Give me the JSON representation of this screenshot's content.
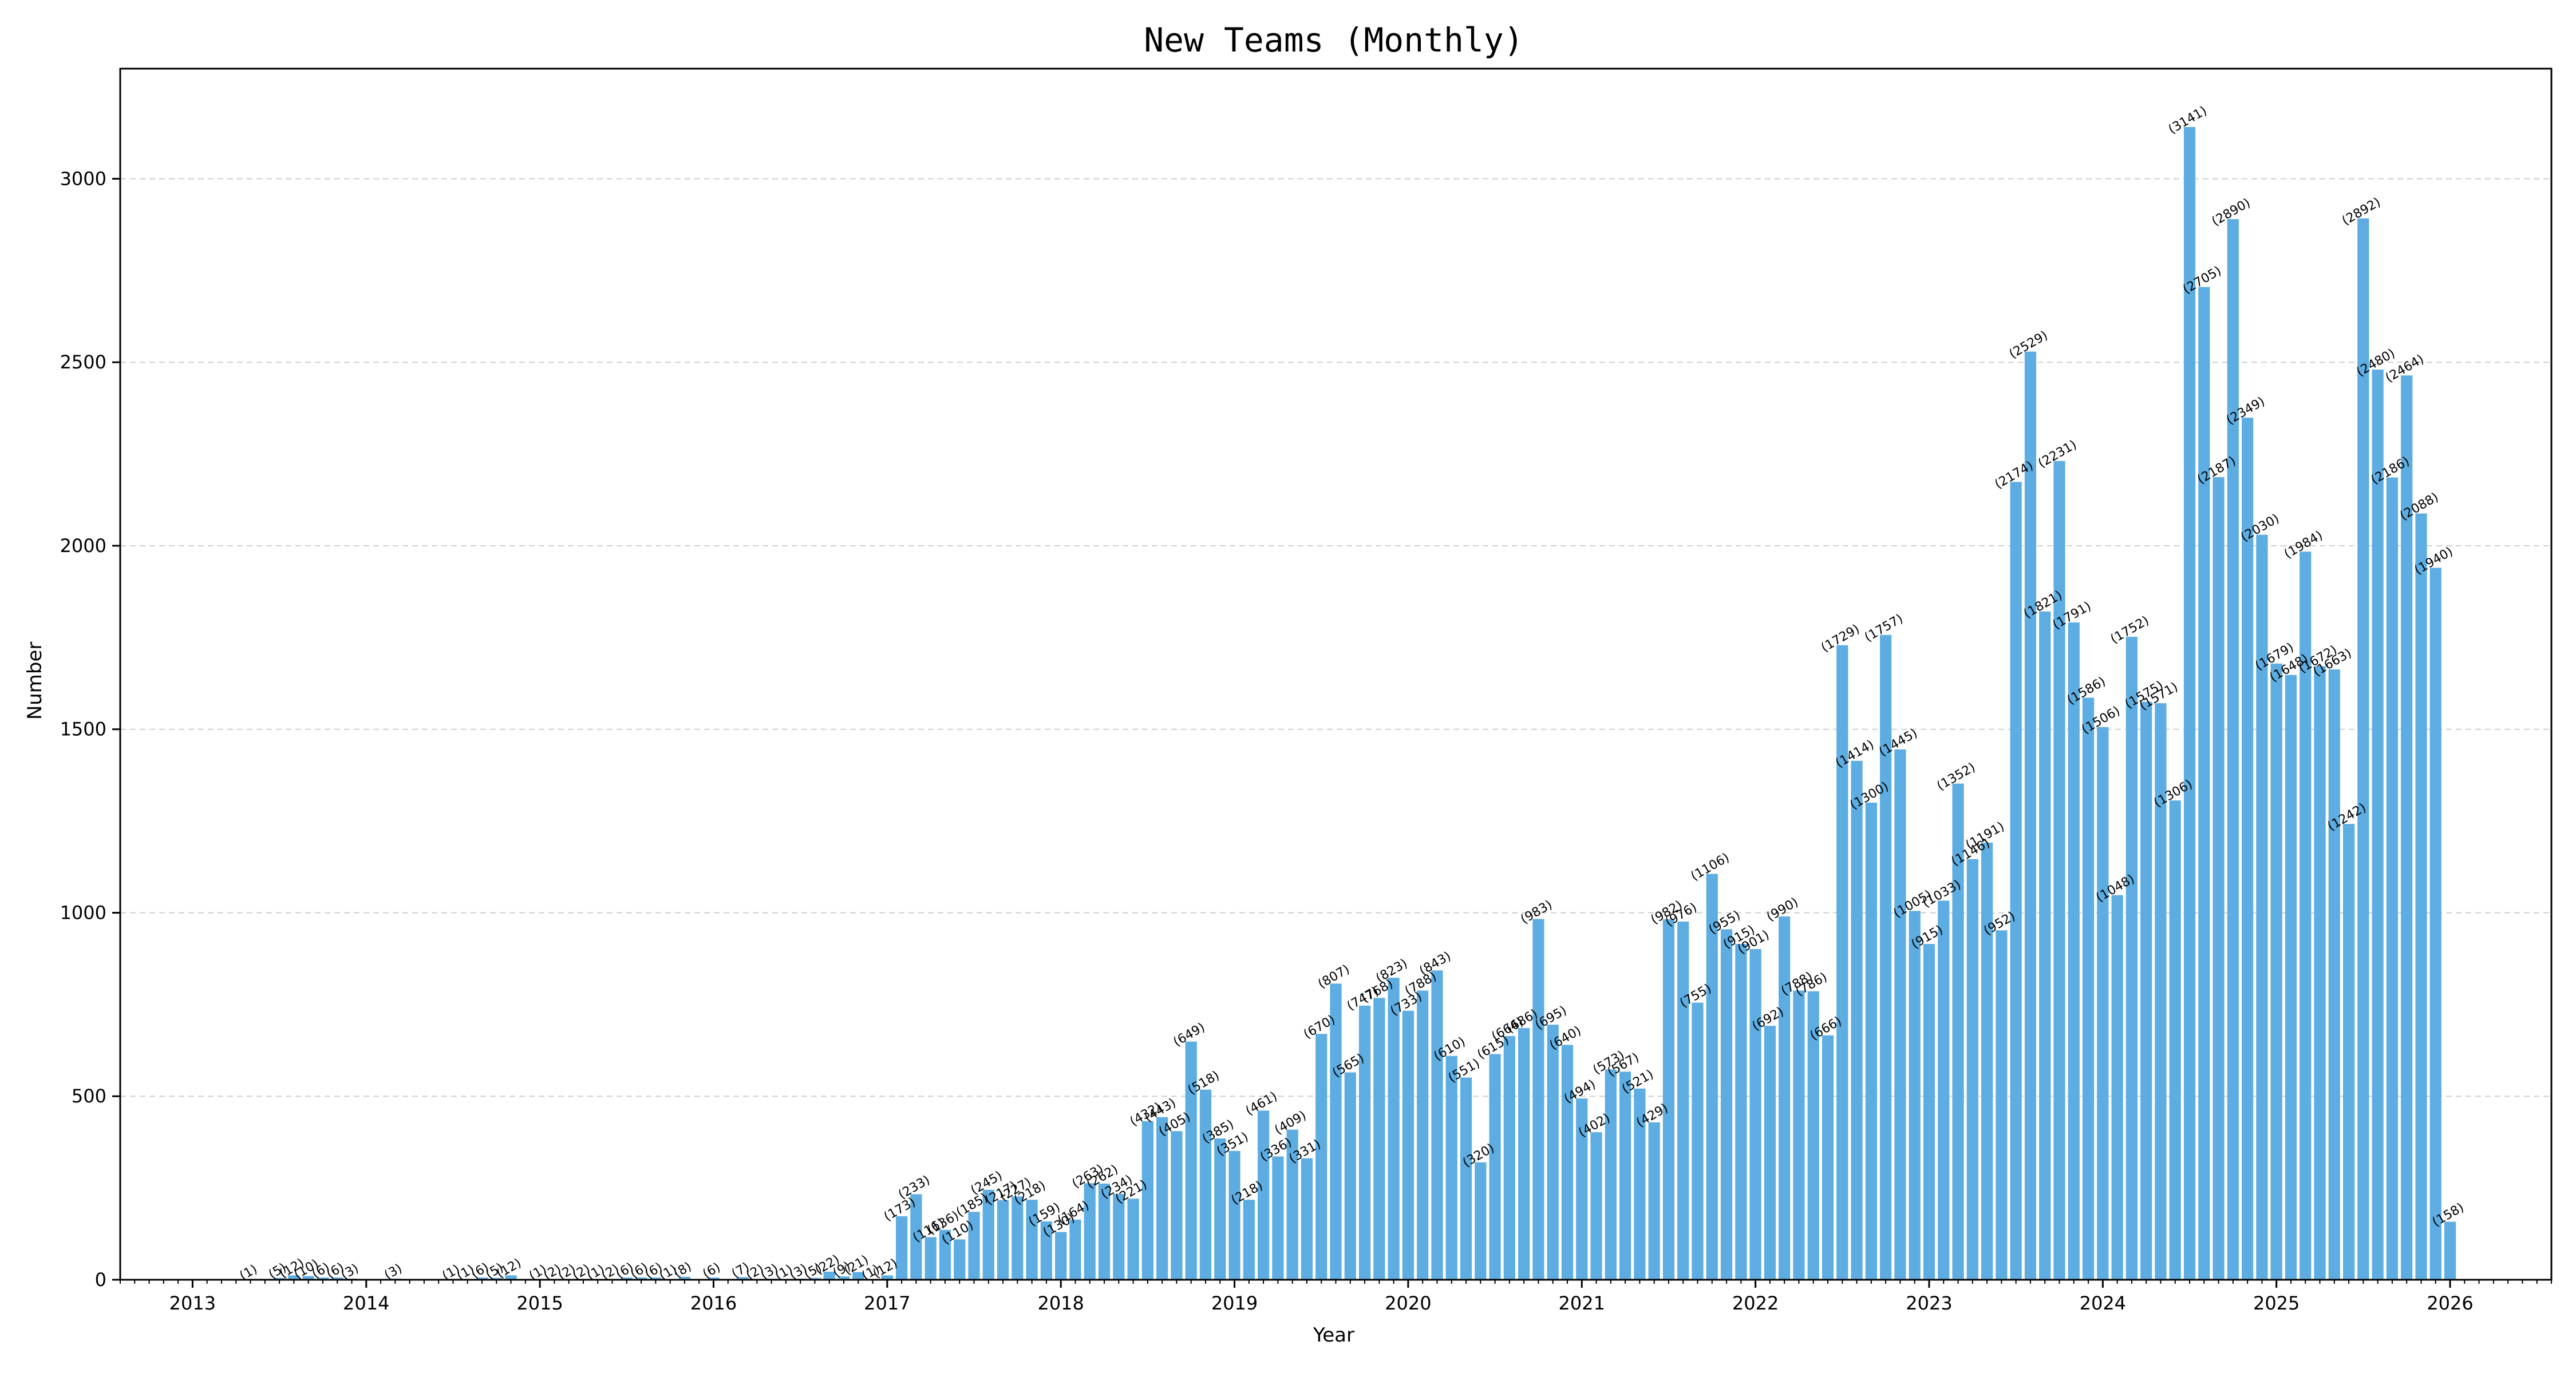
{
  "chart_data": {
    "type": "bar",
    "title": "New Teams (Monthly)",
    "xlabel": "Year",
    "ylabel": "Number",
    "ylim": [
      0,
      3300
    ],
    "yticks": [
      0,
      500,
      1000,
      1500,
      2000,
      2500,
      3000
    ],
    "grid": true,
    "bar_color": "#5DADE2",
    "x_start": "2013-01",
    "xlim": [
      "2012-08",
      "2026-08"
    ],
    "xtick_labels": [
      "2013",
      "2014",
      "2015",
      "2016",
      "2017",
      "2018",
      "2019",
      "2020",
      "2021",
      "2022",
      "2023",
      "2024",
      "2025",
      "2026"
    ],
    "values": [
      null,
      null,
      null,
      null,
      1,
      null,
      5,
      12,
      10,
      6,
      6,
      3,
      null,
      null,
      3,
      null,
      null,
      null,
      1,
      1,
      6,
      5,
      12,
      null,
      1,
      2,
      2,
      2,
      1,
      2,
      6,
      6,
      6,
      1,
      8,
      null,
      6,
      null,
      7,
      2,
      3,
      1,
      3,
      5,
      22,
      9,
      21,
      1,
      12,
      173,
      233,
      116,
      136,
      110,
      185,
      245,
      217,
      227,
      218,
      159,
      130,
      164,
      263,
      262,
      234,
      221,
      432,
      443,
      405,
      649,
      518,
      385,
      351,
      218,
      461,
      336,
      409,
      331,
      670,
      807,
      565,
      747,
      768,
      823,
      733,
      788,
      843,
      610,
      551,
      320,
      615,
      664,
      686,
      983,
      695,
      640,
      494,
      402,
      573,
      567,
      521,
      429,
      982,
      976,
      755,
      1106,
      955,
      915,
      901,
      692,
      990,
      788,
      786,
      666,
      1729,
      1414,
      1300,
      1757,
      1445,
      1005,
      915,
      1033,
      1352,
      1146,
      1191,
      952,
      2174,
      2529,
      1821,
      2231,
      1791,
      1586,
      1506,
      1048,
      1752,
      1575,
      1571,
      1306,
      3141,
      2705,
      2187,
      2890,
      2349,
      2030,
      1679,
      1648,
      1984,
      1672,
      1663,
      1242,
      2892,
      2480,
      2186,
      2464,
      2088,
      1940,
      158
    ]
  }
}
